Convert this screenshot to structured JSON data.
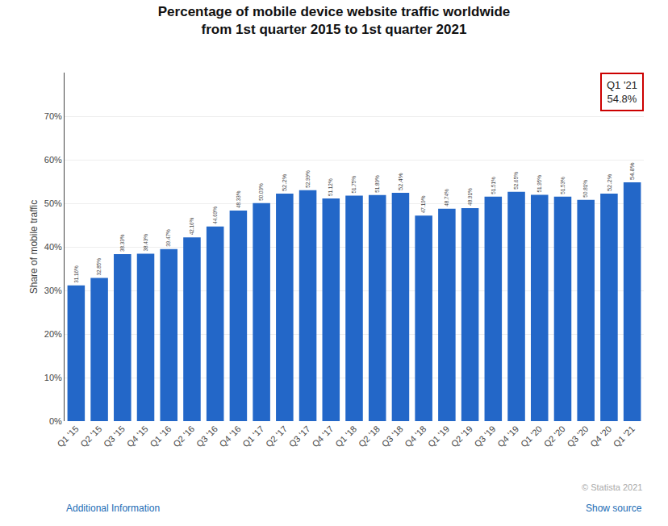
{
  "chart_data": {
    "type": "bar",
    "title": "Percentage of mobile device website traffic worldwide",
    "subtitle": "from 1st quarter 2015 to 1st quarter 2021",
    "y_label": "Share of mobile traffic",
    "categories": [
      "Q1 '15",
      "Q2 '15",
      "Q3 '15",
      "Q4 '15",
      "Q1 '16",
      "Q2 '16",
      "Q3 '16",
      "Q4 '16",
      "Q1 '17",
      "Q2 '17",
      "Q3 '17",
      "Q4 '17",
      "Q1 '18",
      "Q2 '18",
      "Q3 '18",
      "Q4 '18",
      "Q1 '19",
      "Q2 '19",
      "Q3 '19",
      "Q4 '19",
      "Q1 '20",
      "Q2 '20",
      "Q3 '20",
      "Q4 '20",
      "Q1 '21"
    ],
    "values": [
      31.16,
      32.85,
      38.33,
      38.43,
      39.47,
      42.16,
      44.69,
      48.33,
      50.03,
      52.2,
      52.99,
      51.12,
      51.75,
      51.89,
      52.4,
      47.19,
      48.74,
      48.91,
      51.51,
      52.65,
      51.95,
      51.53,
      50.81,
      52.2,
      54.8
    ],
    "value_labels": [
      "31.16%",
      "32.85%",
      "38.33%",
      "38.43%",
      "39.47%",
      "42.16%",
      "44.69%",
      "48.33%",
      "50.03%",
      "52.2%",
      "52.99%",
      "51.12%",
      "51.75%",
      "51.89%",
      "52.4%",
      "47.19%",
      "48.74%",
      "48.91%",
      "51.51%",
      "52.65%",
      "51.95%",
      "51.53%",
      "50.81%",
      "52.2%",
      "54.8%"
    ],
    "data_labels": true,
    "color": "#2367c8",
    "ylim": [
      0,
      80
    ],
    "yticks": [
      {
        "value": 0,
        "label": "0%"
      },
      {
        "value": 10,
        "label": "10%"
      },
      {
        "value": 20,
        "label": "20%"
      },
      {
        "value": 30,
        "label": "30%"
      },
      {
        "value": 40,
        "label": "40%"
      },
      {
        "value": 50,
        "label": "50%"
      },
      {
        "value": 60,
        "label": "60%"
      },
      {
        "value": 70,
        "label": "70%"
      }
    ],
    "grid": true,
    "annotations": [
      "Q1 '21",
      "54.8%",
      "© Statista 2021",
      "Additional Information",
      "Show source"
    ]
  }
}
